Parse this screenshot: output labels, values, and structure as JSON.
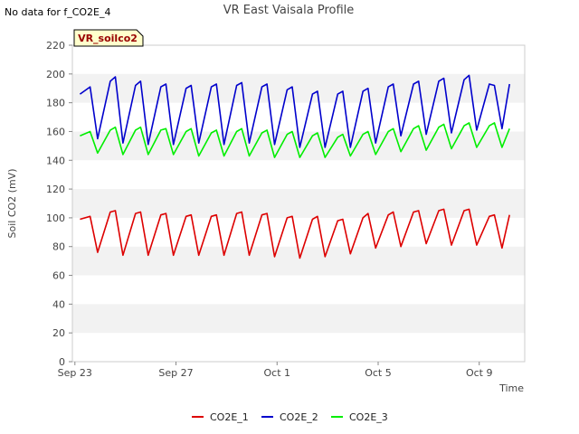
{
  "corner_note": "No data for f_CO2E_4",
  "chart_data": {
    "type": "line",
    "title": "VR East Vaisala Profile",
    "xlabel": "Time",
    "ylabel": "Soil CO2 (mV)",
    "ylim": [
      0,
      220
    ],
    "yticks": [
      0,
      20,
      40,
      60,
      80,
      100,
      120,
      140,
      160,
      180,
      200,
      220
    ],
    "xlim_days": [
      -0.1,
      17.8
    ],
    "xticks": [
      {
        "label": "Sep 23",
        "day": 0
      },
      {
        "label": "Sep 27",
        "day": 4
      },
      {
        "label": "Oct 1",
        "day": 8
      },
      {
        "label": "Oct 5",
        "day": 12
      },
      {
        "label": "Oct 9",
        "day": 16
      }
    ],
    "x_start": "Sep 23",
    "grid": "alternating horizontal bands",
    "legend_position": "bottom-center",
    "station_label": "VR_soilco2",
    "series": [
      {
        "name": "CO2E_1",
        "color": "#dd0000",
        "x": [
          0.2,
          0.6,
          0.9,
          1.4,
          1.6,
          1.9,
          2.4,
          2.6,
          2.9,
          3.4,
          3.6,
          3.9,
          4.4,
          4.6,
          4.9,
          5.4,
          5.6,
          5.9,
          6.4,
          6.6,
          6.9,
          7.4,
          7.6,
          7.9,
          8.4,
          8.6,
          8.9,
          9.4,
          9.6,
          9.9,
          10.4,
          10.6,
          10.9,
          11.4,
          11.6,
          11.9,
          12.4,
          12.6,
          12.9,
          13.4,
          13.6,
          13.9,
          14.4,
          14.6,
          14.9,
          15.4,
          15.6,
          15.9,
          16.4,
          16.6,
          16.9,
          17.2
        ],
        "y": [
          99,
          101,
          76,
          104,
          105,
          74,
          103,
          104,
          74,
          102,
          103,
          74,
          101,
          102,
          74,
          101,
          102,
          74,
          103,
          104,
          74,
          102,
          103,
          73,
          100,
          101,
          72,
          99,
          101,
          73,
          98,
          99,
          75,
          100,
          103,
          79,
          102,
          104,
          80,
          104,
          105,
          82,
          105,
          106,
          81,
          105,
          106,
          81,
          101,
          102,
          79,
          102
        ]
      },
      {
        "name": "CO2E_2",
        "color": "#0000cc",
        "x": [
          0.2,
          0.6,
          0.9,
          1.4,
          1.6,
          1.9,
          2.4,
          2.6,
          2.9,
          3.4,
          3.6,
          3.9,
          4.4,
          4.6,
          4.9,
          5.4,
          5.6,
          5.9,
          6.4,
          6.6,
          6.9,
          7.4,
          7.6,
          7.9,
          8.4,
          8.6,
          8.9,
          9.4,
          9.6,
          9.9,
          10.4,
          10.6,
          10.9,
          11.4,
          11.6,
          11.9,
          12.4,
          12.6,
          12.9,
          13.4,
          13.6,
          13.9,
          14.4,
          14.6,
          14.9,
          15.4,
          15.6,
          15.9,
          16.4,
          16.6,
          16.9,
          17.2
        ],
        "y": [
          186,
          191,
          155,
          195,
          198,
          152,
          192,
          195,
          151,
          191,
          193,
          151,
          190,
          192,
          152,
          191,
          193,
          151,
          192,
          194,
          152,
          191,
          193,
          151,
          189,
          191,
          149,
          186,
          188,
          149,
          186,
          188,
          149,
          188,
          190,
          152,
          191,
          193,
          157,
          193,
          195,
          158,
          195,
          197,
          159,
          196,
          199,
          161,
          193,
          192,
          162,
          193
        ]
      },
      {
        "name": "CO2E_3",
        "color": "#00ee00",
        "x": [
          0.2,
          0.6,
          0.9,
          1.4,
          1.6,
          1.9,
          2.4,
          2.6,
          2.9,
          3.4,
          3.6,
          3.9,
          4.4,
          4.6,
          4.9,
          5.4,
          5.6,
          5.9,
          6.4,
          6.6,
          6.9,
          7.4,
          7.6,
          7.9,
          8.4,
          8.6,
          8.9,
          9.4,
          9.6,
          9.9,
          10.4,
          10.6,
          10.9,
          11.4,
          11.6,
          11.9,
          12.4,
          12.6,
          12.9,
          13.4,
          13.6,
          13.9,
          14.4,
          14.6,
          14.9,
          15.4,
          15.6,
          15.9,
          16.4,
          16.6,
          16.9,
          17.2
        ],
        "y": [
          157,
          160,
          145,
          161,
          163,
          144,
          161,
          163,
          144,
          161,
          162,
          144,
          160,
          162,
          143,
          159,
          161,
          143,
          160,
          162,
          143,
          159,
          161,
          142,
          158,
          160,
          142,
          157,
          159,
          142,
          156,
          158,
          143,
          158,
          160,
          144,
          160,
          162,
          146,
          162,
          164,
          147,
          163,
          165,
          148,
          164,
          166,
          149,
          164,
          166,
          149,
          162
        ]
      }
    ]
  }
}
